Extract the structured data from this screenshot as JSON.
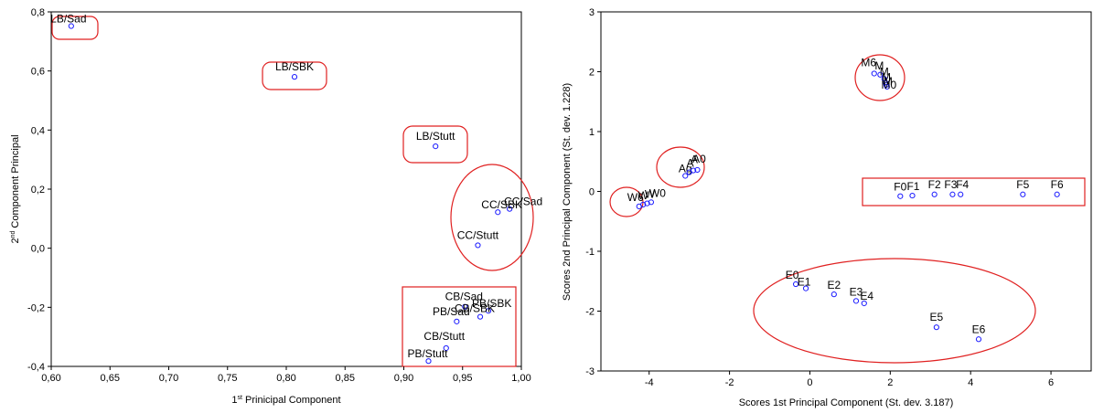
{
  "chart_data": [
    {
      "type": "scatter",
      "xlabel": "1st Prinicipal Component",
      "xlabel_main": "1",
      "xlabel_sup": "st",
      "xlabel_rest": " Prinicipal Component",
      "ylabel_main": "2",
      "ylabel_sup": "nd",
      "ylabel_rest": " Component Principal",
      "xlim": [
        0.6,
        1.0
      ],
      "ylim": [
        -0.4,
        0.8
      ],
      "xticks": [
        "0,60",
        "0,65",
        "0,70",
        "0,75",
        "0,80",
        "0,85",
        "0,90",
        "0,95",
        "1,00"
      ],
      "yticks": [
        "-0,4",
        "-0,2",
        "0,0",
        "0,2",
        "0,4",
        "0,6",
        "0,8"
      ],
      "points": [
        {
          "label": "LB/Sad",
          "x": 0.617,
          "y": 0.752
        },
        {
          "label": "LB/SBK",
          "x": 0.807,
          "y": 0.58
        },
        {
          "label": "LB/Stutt",
          "x": 0.927,
          "y": 0.345
        },
        {
          "label": "CC/Sad",
          "x": 0.99,
          "y": 0.133
        },
        {
          "label": "CC/SBK",
          "x": 0.98,
          "y": 0.122
        },
        {
          "label": "CC/Stutt",
          "x": 0.963,
          "y": 0.01
        },
        {
          "label": "CB/Sad",
          "x": 0.952,
          "y": -0.198
        },
        {
          "label": "PB/SBK",
          "x": 0.972,
          "y": -0.212
        },
        {
          "label": "CB/SBK",
          "x": 0.965,
          "y": -0.232
        },
        {
          "label": "PB/Sad",
          "x": 0.945,
          "y": -0.248
        },
        {
          "label": "CB/Stutt",
          "x": 0.936,
          "y": -0.338
        },
        {
          "label": "PB/Stutt",
          "x": 0.921,
          "y": -0.382
        }
      ]
    },
    {
      "type": "scatter",
      "xlabel": "Scores 1st Principal Component (St. dev. 3.187)",
      "ylabel": "Scores 2nd Principal Component (St. dev. 1.228)",
      "xlim": [
        -5.2,
        7.0
      ],
      "ylim": [
        -3,
        3
      ],
      "xticks": [
        "-4",
        "-2",
        "0",
        "2",
        "4",
        "6"
      ],
      "yticks": [
        "-3",
        "-2",
        "-1",
        "0",
        "1",
        "2",
        "3"
      ],
      "points": [
        {
          "label": "M6",
          "x": 1.6,
          "y": 1.97
        },
        {
          "label": "M",
          "x": 1.75,
          "y": 1.95
        },
        {
          "label": "M",
          "x": 1.85,
          "y": 1.88
        },
        {
          "label": "M",
          "x": 1.88,
          "y": 1.82
        },
        {
          "label": "M",
          "x": 1.9,
          "y": 1.78
        },
        {
          "label": "M0",
          "x": 1.92,
          "y": 1.75
        },
        {
          "label": "Ag",
          "x": -3.1,
          "y": 0.26
        },
        {
          "label": "A",
          "x": -3.0,
          "y": 0.32
        },
        {
          "label": "A",
          "x": -2.9,
          "y": 0.35
        },
        {
          "label": "A0",
          "x": -2.8,
          "y": 0.36
        },
        {
          "label": "W6",
          "x": -4.25,
          "y": -0.25
        },
        {
          "label": "W",
          "x": -4.15,
          "y": -0.22
        },
        {
          "label": "W",
          "x": -4.05,
          "y": -0.2
        },
        {
          "label": "W0",
          "x": -3.95,
          "y": -0.18
        },
        {
          "label": "F0",
          "x": 2.25,
          "y": -0.08
        },
        {
          "label": "F1",
          "x": 2.55,
          "y": -0.07
        },
        {
          "label": "F2",
          "x": 3.1,
          "y": -0.05
        },
        {
          "label": "F3",
          "x": 3.55,
          "y": -0.05
        },
        {
          "label": "F4",
          "x": 3.75,
          "y": -0.05
        },
        {
          "label": "F5",
          "x": 5.3,
          "y": -0.05
        },
        {
          "label": "F6",
          "x": 6.15,
          "y": -0.05
        },
        {
          "label": "E0",
          "x": -0.35,
          "y": -1.55
        },
        {
          "label": "E1",
          "x": -0.1,
          "y": -1.62
        },
        {
          "label": "E2",
          "x": 0.6,
          "y": -1.72
        },
        {
          "label": "E3",
          "x": 1.15,
          "y": -1.83
        },
        {
          "label": "E4",
          "x": 1.35,
          "y": -1.87
        },
        {
          "label": "E5",
          "x": 3.15,
          "y": -2.27
        },
        {
          "label": "E6",
          "x": 4.2,
          "y": -2.47
        }
      ]
    }
  ]
}
